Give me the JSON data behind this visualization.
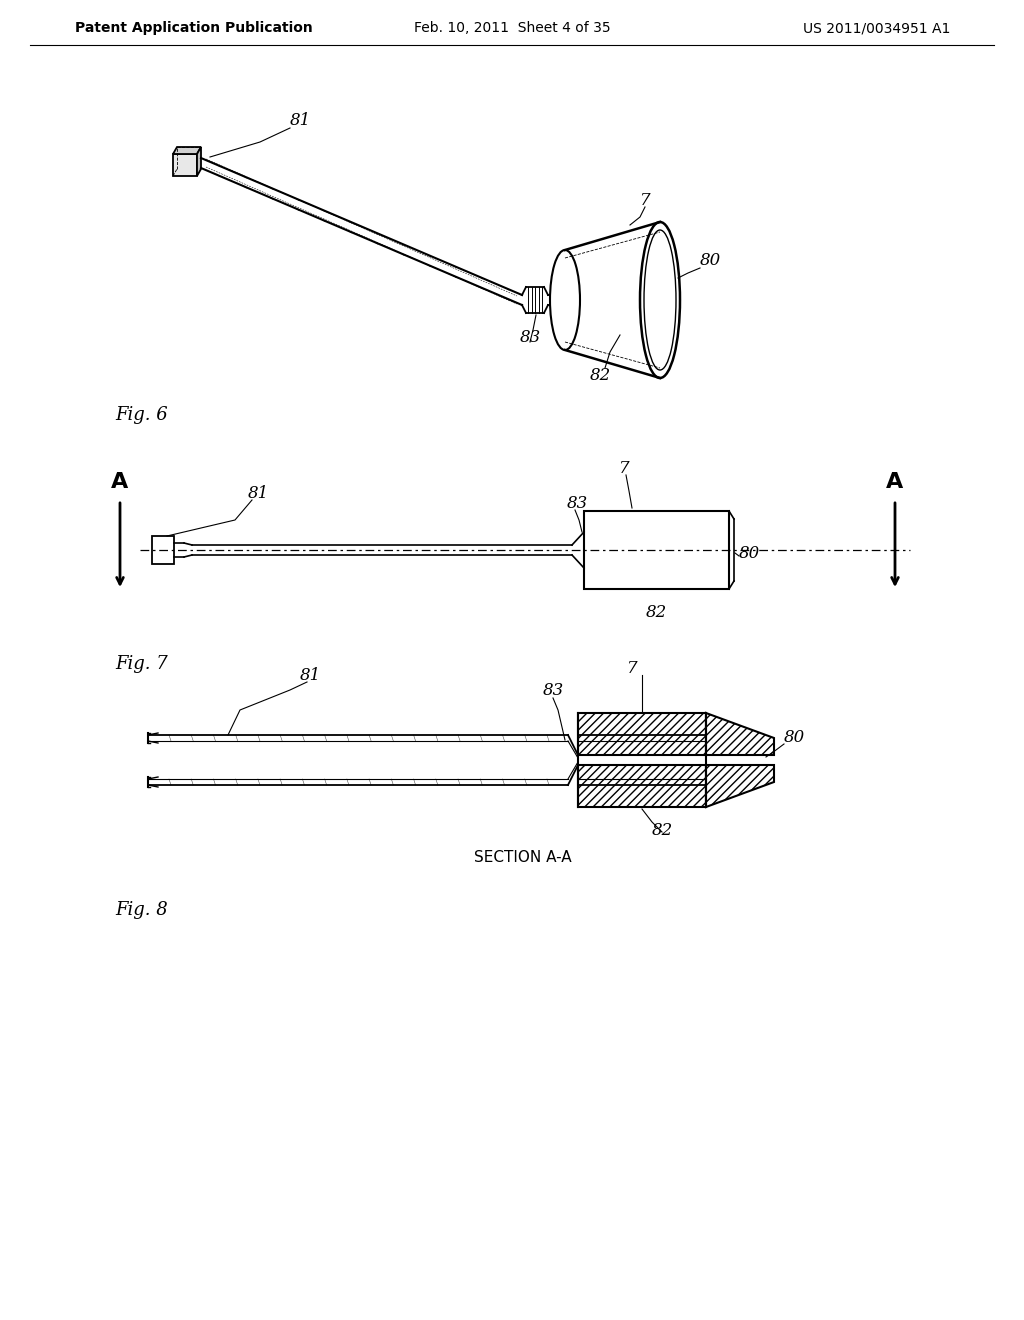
{
  "bg_color": "#ffffff",
  "header_left": "Patent Application Publication",
  "header_mid": "Feb. 10, 2011  Sheet 4 of 35",
  "header_right": "US 2011/0034951 A1",
  "fig6_label": "Fig. 6",
  "fig7_label": "Fig. 7",
  "fig8_label": "Fig. 8",
  "section_label": "SECTION A-A",
  "line_color": "#000000"
}
